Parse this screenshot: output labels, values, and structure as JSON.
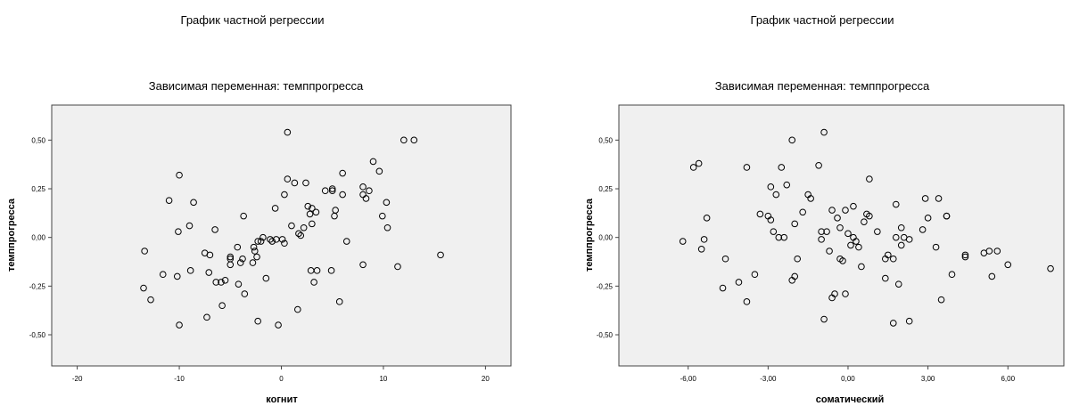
{
  "chart_data": [
    {
      "type": "scatter",
      "title": "График частной регрессии",
      "subtitle": "Зависимая переменная: темппрогресса",
      "xlabel": "когнит",
      "ylabel": "темппрогресса",
      "xlim": [
        -22.5,
        22.5
      ],
      "ylim": [
        -0.66,
        0.68
      ],
      "xticks": [
        -20,
        -10,
        0,
        10,
        20
      ],
      "xtick_labels": [
        "-20",
        "-10",
        "0",
        "10",
        "20"
      ],
      "yticks": [
        0.5,
        0.25,
        0.0,
        -0.25,
        -0.5
      ],
      "ytick_labels": [
        "0,50",
        "0,25",
        "0,00",
        "-0,25",
        "-0,50"
      ],
      "grid": false,
      "background": "#f0f0f0",
      "marker_color": "#000000",
      "series": [
        {
          "points": [
            [
              0.6,
              0.54
            ],
            [
              12,
              0.5
            ],
            [
              13,
              0.5
            ],
            [
              9,
              0.39
            ],
            [
              9.6,
              0.34
            ],
            [
              6,
              0.33
            ],
            [
              -10,
              0.32
            ],
            [
              0.6,
              0.3
            ],
            [
              1.3,
              0.28
            ],
            [
              2.4,
              0.28
            ],
            [
              8,
              0.26
            ],
            [
              5,
              0.25
            ],
            [
              5,
              0.24
            ],
            [
              4.3,
              0.24
            ],
            [
              8.6,
              0.24
            ],
            [
              8,
              0.22
            ],
            [
              6,
              0.22
            ],
            [
              0.3,
              0.22
            ],
            [
              8.3,
              0.2
            ],
            [
              -11,
              0.19
            ],
            [
              -8.6,
              0.18
            ],
            [
              10.3,
              0.18
            ],
            [
              2.6,
              0.16
            ],
            [
              -0.6,
              0.15
            ],
            [
              3,
              0.15
            ],
            [
              5.3,
              0.14
            ],
            [
              3.4,
              0.13
            ],
            [
              2.8,
              0.12
            ],
            [
              5.2,
              0.11
            ],
            [
              -3.7,
              0.11
            ],
            [
              9.9,
              0.11
            ],
            [
              -9,
              0.06
            ],
            [
              1.0,
              0.06
            ],
            [
              10.4,
              0.05
            ],
            [
              -10.1,
              0.03
            ],
            [
              -6.5,
              0.04
            ],
            [
              1.7,
              0.02
            ],
            [
              1.9,
              0.01
            ],
            [
              3.0,
              0.07
            ],
            [
              2.2,
              0.05
            ],
            [
              -1.8,
              0.0
            ],
            [
              -1.1,
              -0.01
            ],
            [
              -0.5,
              -0.01
            ],
            [
              0.1,
              -0.01
            ],
            [
              -2.3,
              -0.02
            ],
            [
              -2,
              -0.02
            ],
            [
              -0.9,
              -0.02
            ],
            [
              0.3,
              -0.03
            ],
            [
              6.4,
              -0.02
            ],
            [
              -2.7,
              -0.05
            ],
            [
              -2.6,
              -0.07
            ],
            [
              -4.3,
              -0.05
            ],
            [
              -13.4,
              -0.07
            ],
            [
              -7.5,
              -0.08
            ],
            [
              -7,
              -0.09
            ],
            [
              -5,
              -0.1
            ],
            [
              -5,
              -0.11
            ],
            [
              -2.4,
              -0.1
            ],
            [
              -3.8,
              -0.11
            ],
            [
              -4,
              -0.13
            ],
            [
              -2.8,
              -0.13
            ],
            [
              -5,
              -0.14
            ],
            [
              15.6,
              -0.09
            ],
            [
              8,
              -0.14
            ],
            [
              11.4,
              -0.15
            ],
            [
              2.9,
              -0.17
            ],
            [
              3.5,
              -0.17
            ],
            [
              4.9,
              -0.17
            ],
            [
              -8.9,
              -0.17
            ],
            [
              -11.6,
              -0.19
            ],
            [
              -10.2,
              -0.2
            ],
            [
              -7.1,
              -0.18
            ],
            [
              -1.5,
              -0.21
            ],
            [
              -5.5,
              -0.22
            ],
            [
              -5.9,
              -0.23
            ],
            [
              -6.4,
              -0.23
            ],
            [
              3.2,
              -0.23
            ],
            [
              -4.2,
              -0.24
            ],
            [
              -13.5,
              -0.26
            ],
            [
              -3.6,
              -0.29
            ],
            [
              -12.8,
              -0.32
            ],
            [
              5.7,
              -0.33
            ],
            [
              -5.8,
              -0.35
            ],
            [
              1.6,
              -0.37
            ],
            [
              -7.3,
              -0.41
            ],
            [
              -2.3,
              -0.43
            ],
            [
              -10,
              -0.45
            ],
            [
              -0.3,
              -0.45
            ]
          ]
        }
      ]
    },
    {
      "type": "scatter",
      "title": "График частной регрессии",
      "subtitle": "Зависимая переменная: темппрогресса",
      "xlabel": "соматический",
      "ylabel": "темппрогресса",
      "xlim": [
        -8.6,
        8.1
      ],
      "ylim": [
        -0.66,
        0.68
      ],
      "xticks": [
        -6,
        -3,
        0,
        3,
        6
      ],
      "xtick_labels": [
        "-6,00",
        "-3,00",
        "0,00",
        "3,00",
        "6,00"
      ],
      "yticks": [
        0.5,
        0.25,
        0.0,
        -0.25,
        -0.5
      ],
      "ytick_labels": [
        "0,50",
        "0,25",
        "0,00",
        "-0,25",
        "-0,50"
      ],
      "grid": false,
      "background": "#f0f0f0",
      "marker_color": "#000000",
      "series": [
        {
          "points": [
            [
              -0.9,
              0.54
            ],
            [
              -2.1,
              0.5
            ],
            [
              -5.6,
              0.38
            ],
            [
              -5.8,
              0.36
            ],
            [
              -3.8,
              0.36
            ],
            [
              -2.5,
              0.36
            ],
            [
              -1.1,
              0.37
            ],
            [
              0.8,
              0.3
            ],
            [
              -2.9,
              0.26
            ],
            [
              -2.3,
              0.27
            ],
            [
              -2.7,
              0.22
            ],
            [
              -1.5,
              0.22
            ],
            [
              -1.4,
              0.2
            ],
            [
              2.9,
              0.2
            ],
            [
              3.4,
              0.2
            ],
            [
              1.8,
              0.17
            ],
            [
              0.2,
              0.16
            ],
            [
              -0.1,
              0.14
            ],
            [
              -1.7,
              0.13
            ],
            [
              -0.6,
              0.14
            ],
            [
              -3.3,
              0.12
            ],
            [
              -3.0,
              0.11
            ],
            [
              0.7,
              0.12
            ],
            [
              0.8,
              0.11
            ],
            [
              3.7,
              0.11
            ],
            [
              3.7,
              0.11
            ],
            [
              -5.3,
              0.1
            ],
            [
              -0.4,
              0.1
            ],
            [
              -2.9,
              0.09
            ],
            [
              3.0,
              0.1
            ],
            [
              0.6,
              0.08
            ],
            [
              -2.0,
              0.07
            ],
            [
              2.0,
              0.05
            ],
            [
              -0.3,
              0.05
            ],
            [
              2.8,
              0.04
            ],
            [
              -2.8,
              0.03
            ],
            [
              -1.0,
              0.03
            ],
            [
              -0.8,
              0.03
            ],
            [
              1.1,
              0.03
            ],
            [
              0.0,
              0.02
            ],
            [
              -2.4,
              0.0
            ],
            [
              -2.6,
              0.0
            ],
            [
              -1.0,
              -0.01
            ],
            [
              0.2,
              0.0
            ],
            [
              1.8,
              0.0
            ],
            [
              2.1,
              0.0
            ],
            [
              2.3,
              -0.01
            ],
            [
              -5.4,
              -0.01
            ],
            [
              -6.2,
              -0.02
            ],
            [
              0.3,
              -0.02
            ],
            [
              0.1,
              -0.04
            ],
            [
              2.0,
              -0.04
            ],
            [
              0.4,
              -0.05
            ],
            [
              3.3,
              -0.05
            ],
            [
              -5.5,
              -0.06
            ],
            [
              5.3,
              -0.07
            ],
            [
              5.6,
              -0.07
            ],
            [
              5.1,
              -0.08
            ],
            [
              -0.7,
              -0.07
            ],
            [
              4.4,
              -0.09
            ],
            [
              4.4,
              -0.1
            ],
            [
              1.5,
              -0.09
            ],
            [
              1.4,
              -0.11
            ],
            [
              1.7,
              -0.11
            ],
            [
              -0.3,
              -0.11
            ],
            [
              -1.9,
              -0.11
            ],
            [
              -4.6,
              -0.11
            ],
            [
              -0.2,
              -0.12
            ],
            [
              6.0,
              -0.14
            ],
            [
              7.6,
              -0.16
            ],
            [
              0.5,
              -0.15
            ],
            [
              3.9,
              -0.19
            ],
            [
              5.4,
              -0.2
            ],
            [
              1.4,
              -0.21
            ],
            [
              -3.5,
              -0.19
            ],
            [
              -2.0,
              -0.2
            ],
            [
              -2.1,
              -0.22
            ],
            [
              -4.1,
              -0.23
            ],
            [
              1.9,
              -0.24
            ],
            [
              -4.7,
              -0.26
            ],
            [
              -0.5,
              -0.29
            ],
            [
              -0.1,
              -0.29
            ],
            [
              -0.6,
              -0.31
            ],
            [
              -3.8,
              -0.33
            ],
            [
              3.5,
              -0.32
            ],
            [
              -0.9,
              -0.42
            ],
            [
              1.7,
              -0.44
            ],
            [
              2.3,
              -0.43
            ]
          ]
        }
      ]
    }
  ]
}
